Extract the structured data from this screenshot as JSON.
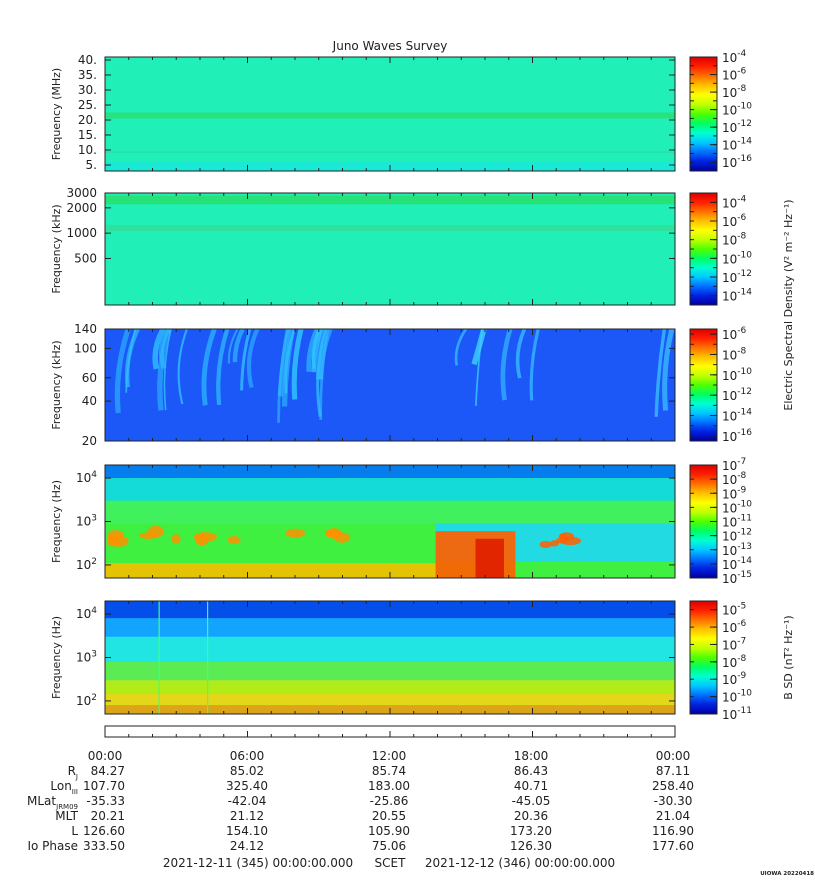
{
  "title": "Juno Waves Survey",
  "colors": {
    "frame": "#222222",
    "background": "#ffffff"
  },
  "colormap": [
    "#0000a0",
    "#0020e0",
    "#0070ff",
    "#00c8ff",
    "#00ffd0",
    "#00ff60",
    "#50ff00",
    "#c0ff00",
    "#ffff00",
    "#ffc000",
    "#ff7000",
    "#ff2000",
    "#e00000"
  ],
  "chart_data": [
    {
      "type": "heatmap",
      "id": "panel1",
      "ylabel": "Frequency (MHz)",
      "yscale": "linear",
      "ylim": [
        3,
        41
      ],
      "yticks": [
        {
          "v": 40,
          "label": "40."
        },
        {
          "v": 35,
          "label": "35."
        },
        {
          "v": 30,
          "label": "30."
        },
        {
          "v": 25,
          "label": "25."
        },
        {
          "v": 20,
          "label": "20."
        },
        {
          "v": 15,
          "label": "15."
        },
        {
          "v": 10,
          "label": "10."
        },
        {
          "v": 5,
          "label": "5."
        }
      ],
      "base_color": "#20f0b8",
      "features": [
        {
          "kind": "band",
          "y": [
            20.5,
            22.5
          ],
          "color": "#28e078"
        },
        {
          "kind": "band",
          "y": [
            9,
            9.6
          ],
          "color": "#28e0a8"
        },
        {
          "kind": "band",
          "y": [
            3,
            6
          ],
          "color": "#18e8d8"
        }
      ],
      "colorbar": {
        "scale": "log",
        "range_exp": [
          -17,
          -4
        ],
        "labels": [
          {
            "b": "10",
            "e": "-4"
          },
          {
            "b": "10",
            "e": "-6"
          },
          {
            "b": "10",
            "e": "-8"
          },
          {
            "b": "10",
            "e": "-10"
          },
          {
            "b": "10",
            "e": "-12"
          },
          {
            "b": "10",
            "e": "-14"
          },
          {
            "b": "10",
            "e": "-16"
          }
        ]
      }
    },
    {
      "type": "heatmap",
      "id": "panel2",
      "ylabel": "Frequency (kHz)",
      "yscale": "log",
      "ylim": [
        140,
        3000
      ],
      "yticks": [
        {
          "v": 3000,
          "label": "3000"
        },
        {
          "v": 2000,
          "label": "2000"
        },
        {
          "v": 1000,
          "label": "1000"
        },
        {
          "v": 500,
          "label": "500"
        }
      ],
      "base_color": "#20f0b8",
      "features": [
        {
          "kind": "band",
          "y": [
            2200,
            2800
          ],
          "color": "#28e070"
        },
        {
          "kind": "band",
          "y": [
            1050,
            1250
          ],
          "color": "#30e098"
        }
      ],
      "colorbar": {
        "scale": "log",
        "range_exp": [
          -15,
          -3
        ],
        "title": "Electric Spectral Density (V² m⁻² Hz⁻¹)",
        "labels": [
          {
            "b": "10",
            "e": "-4"
          },
          {
            "b": "10",
            "e": "-6"
          },
          {
            "b": "10",
            "e": "-8"
          },
          {
            "b": "10",
            "e": "-10"
          },
          {
            "b": "10",
            "e": "-12"
          },
          {
            "b": "10",
            "e": "-14"
          }
        ]
      }
    },
    {
      "type": "heatmap",
      "id": "panel3",
      "ylabel": "Frequency (kHz)",
      "yscale": "log",
      "ylim": [
        20,
        140
      ],
      "yticks": [
        {
          "v": 140,
          "label": "140"
        },
        {
          "v": 100,
          "label": "100"
        },
        {
          "v": 60,
          "label": "60"
        },
        {
          "v": 40,
          "label": "40"
        },
        {
          "v": 20,
          "label": "20"
        }
      ],
      "base_color": "#1c58f8",
      "features": [
        {
          "kind": "streaks",
          "x": [
            0,
            0.42
          ],
          "color": "#30c0ff",
          "count": 26
        },
        {
          "kind": "streaks",
          "x": [
            0.62,
            0.78
          ],
          "color": "#3cd0ff",
          "count": 6
        },
        {
          "kind": "streaks",
          "x": [
            0.96,
            1.0
          ],
          "color": "#40d8ff",
          "count": 2
        }
      ],
      "colorbar": {
        "scale": "log",
        "range_exp": [
          -16.5,
          -5.5
        ],
        "labels": [
          {
            "b": "10",
            "e": "-6"
          },
          {
            "b": "10",
            "e": "-8"
          },
          {
            "b": "10",
            "e": "-10"
          },
          {
            "b": "10",
            "e": "-12"
          },
          {
            "b": "10",
            "e": "-14"
          },
          {
            "b": "10",
            "e": "-16"
          }
        ]
      }
    },
    {
      "type": "heatmap",
      "id": "panel4",
      "ylabel": "Frequency (Hz)",
      "yscale": "log",
      "ylim": [
        50,
        20000
      ],
      "yticks": [
        {
          "v": 10000,
          "b": "10",
          "e": "4"
        },
        {
          "v": 1000,
          "b": "10",
          "e": "3"
        },
        {
          "v": 100,
          "b": "10",
          "e": "2"
        }
      ],
      "base_color": "#40f040",
      "features": [
        {
          "kind": "band",
          "y": [
            10000,
            20000
          ],
          "color": "#0070ff"
        },
        {
          "kind": "band",
          "y": [
            3000,
            10000
          ],
          "color": "#10d8e8"
        },
        {
          "kind": "band",
          "y": [
            900,
            3000
          ],
          "color": "#40f060"
        },
        {
          "kind": "rect",
          "x": [
            0.58,
            1.0
          ],
          "y": [
            120,
            900
          ],
          "color": "#20d8f0"
        },
        {
          "kind": "rect",
          "x": [
            0.0,
            0.58
          ],
          "y": [
            50,
            110
          ],
          "color": "#f0c000"
        },
        {
          "kind": "rect",
          "x": [
            0.58,
            0.72
          ],
          "y": [
            50,
            600
          ],
          "color": "#ff6000"
        },
        {
          "kind": "rect",
          "x": [
            0.65,
            0.7
          ],
          "y": [
            50,
            400
          ],
          "color": "#e02000"
        },
        {
          "kind": "blobs",
          "x": [
            0.0,
            0.45
          ],
          "y": 450,
          "color": "#ff9000",
          "count": 14
        },
        {
          "kind": "blobs",
          "x": [
            0.72,
            0.85
          ],
          "y": 350,
          "color": "#ff6000",
          "count": 6
        }
      ],
      "colorbar": {
        "scale": "log",
        "range_exp": [
          -15,
          -7
        ],
        "labels": [
          {
            "b": "10",
            "e": "-7"
          },
          {
            "b": "10",
            "e": "-8"
          },
          {
            "b": "10",
            "e": "-9"
          },
          {
            "b": "10",
            "e": "-10"
          },
          {
            "b": "10",
            "e": "-11"
          },
          {
            "b": "10",
            "e": "-12"
          },
          {
            "b": "10",
            "e": "-13"
          },
          {
            "b": "10",
            "e": "-14"
          },
          {
            "b": "10",
            "e": "-15"
          }
        ]
      }
    },
    {
      "type": "heatmap",
      "id": "panel5",
      "ylabel": "Frequency (Hz)",
      "yscale": "log",
      "ylim": [
        50,
        20000
      ],
      "yticks": [
        {
          "v": 10000,
          "b": "10",
          "e": "4"
        },
        {
          "v": 1000,
          "b": "10",
          "e": "3"
        },
        {
          "v": 100,
          "b": "10",
          "e": "2"
        }
      ],
      "base_color": "#30c8ff",
      "features": [
        {
          "kind": "band",
          "y": [
            8000,
            20000
          ],
          "color": "#0040e8"
        },
        {
          "kind": "band",
          "y": [
            3000,
            8000
          ],
          "color": "#10a0ff"
        },
        {
          "kind": "band",
          "y": [
            800,
            3000
          ],
          "color": "#20e8e0"
        },
        {
          "kind": "band",
          "y": [
            300,
            800
          ],
          "color": "#60f040"
        },
        {
          "kind": "band",
          "y": [
            150,
            300
          ],
          "color": "#c0f000"
        },
        {
          "kind": "band",
          "y": [
            80,
            150
          ],
          "color": "#f8d800"
        },
        {
          "kind": "band",
          "y": [
            50,
            80
          ],
          "color": "#f0a000"
        },
        {
          "kind": "vline",
          "x": 0.095,
          "color": "#40ff80"
        },
        {
          "kind": "vline",
          "x": 0.18,
          "color": "#40ff80"
        }
      ],
      "colorbar": {
        "scale": "log",
        "range_exp": [
          -11,
          -4.5
        ],
        "title": "B SD (nT² Hz⁻¹)",
        "labels": [
          {
            "b": "10",
            "e": "-5"
          },
          {
            "b": "10",
            "e": "-6"
          },
          {
            "b": "10",
            "e": "-7"
          },
          {
            "b": "10",
            "e": "-8"
          },
          {
            "b": "10",
            "e": "-9"
          },
          {
            "b": "10",
            "e": "-10"
          },
          {
            "b": "10",
            "e": "-11"
          }
        ]
      }
    }
  ],
  "ephemeris": {
    "times": [
      "00:00",
      "06:00",
      "12:00",
      "18:00",
      "00:00"
    ],
    "rows": [
      {
        "label": "R",
        "sub": "J",
        "values": [
          "84.27",
          "85.02",
          "85.74",
          "86.43",
          "87.11"
        ]
      },
      {
        "label": "Lon",
        "sub": "III",
        "values": [
          "107.70",
          "325.40",
          "183.00",
          "40.71",
          "258.40"
        ]
      },
      {
        "label": "MLat",
        "sub": "JRM09",
        "values": [
          "-35.33",
          "-42.04",
          "-25.86",
          "-45.05",
          "-30.30"
        ]
      },
      {
        "label": "MLT",
        "sub": "",
        "values": [
          "20.21",
          "21.12",
          "20.55",
          "20.36",
          "21.04"
        ]
      },
      {
        "label": "L",
        "sub": "",
        "values": [
          "126.60",
          "154.10",
          "105.90",
          "173.20",
          "116.90"
        ]
      },
      {
        "label": "Io Phase",
        "sub": "",
        "values": [
          "333.50",
          "24.12",
          "75.06",
          "126.30",
          "177.60"
        ]
      }
    ]
  },
  "footer": {
    "start": "2021-12-11 (345) 00:00:00.000",
    "mid": "SCET",
    "end": "2021-12-12 (346) 00:00:00.000",
    "stamp": "UIOWA 20220418"
  }
}
